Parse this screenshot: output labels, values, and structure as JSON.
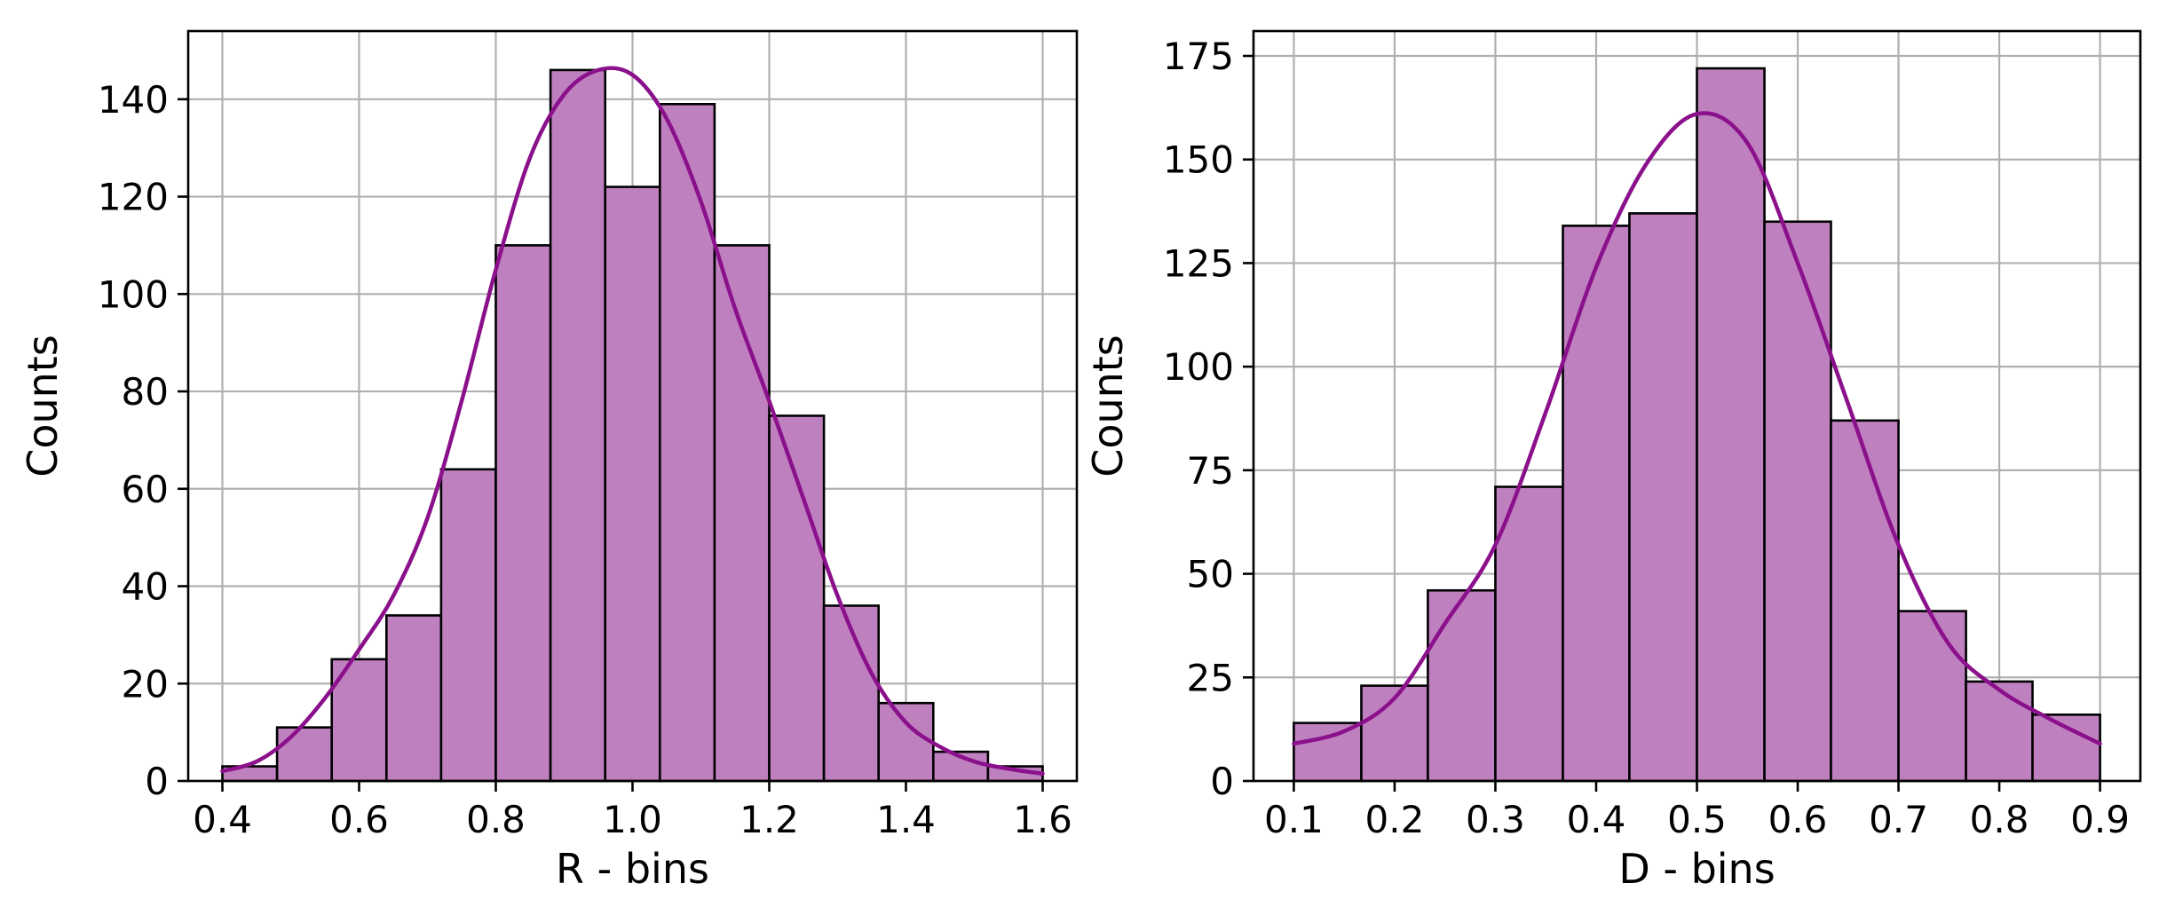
{
  "chart_data": [
    {
      "type": "bar",
      "subtype": "histogram-with-kde",
      "xlabel": "R - bins",
      "ylabel": "Counts",
      "xlim": [
        0.35,
        1.65
      ],
      "ylim": [
        0,
        154
      ],
      "xticks": [
        0.4,
        0.6,
        0.8,
        1.0,
        1.2,
        1.4,
        1.6
      ],
      "xtick_labels": [
        "0.4",
        "0.6",
        "0.8",
        "1.0",
        "1.2",
        "1.4",
        "1.6"
      ],
      "yticks": [
        0,
        20,
        40,
        60,
        80,
        100,
        120,
        140
      ],
      "ytick_labels": [
        "0",
        "20",
        "40",
        "60",
        "80",
        "100",
        "120",
        "140"
      ],
      "grid": true,
      "colors": {
        "bar_fill": "#bf80bf",
        "bar_edge": "#000000",
        "kde": "#8b108b"
      },
      "bins": [
        {
          "x0": 0.4,
          "x1": 0.48,
          "count": 3
        },
        {
          "x0": 0.48,
          "x1": 0.56,
          "count": 11
        },
        {
          "x0": 0.56,
          "x1": 0.64,
          "count": 25
        },
        {
          "x0": 0.64,
          "x1": 0.72,
          "count": 34
        },
        {
          "x0": 0.72,
          "x1": 0.8,
          "count": 64
        },
        {
          "x0": 0.8,
          "x1": 0.88,
          "count": 110
        },
        {
          "x0": 0.88,
          "x1": 0.96,
          "count": 146
        },
        {
          "x0": 0.96,
          "x1": 1.04,
          "count": 122
        },
        {
          "x0": 1.04,
          "x1": 1.12,
          "count": 139
        },
        {
          "x0": 1.12,
          "x1": 1.2,
          "count": 110
        },
        {
          "x0": 1.2,
          "x1": 1.28,
          "count": 75
        },
        {
          "x0": 1.28,
          "x1": 1.36,
          "count": 36
        },
        {
          "x0": 1.36,
          "x1": 1.44,
          "count": 16
        },
        {
          "x0": 1.44,
          "x1": 1.52,
          "count": 6
        },
        {
          "x0": 1.52,
          "x1": 1.6,
          "count": 3
        }
      ],
      "kde": {
        "x": [
          0.4,
          0.45,
          0.5,
          0.55,
          0.6,
          0.65,
          0.7,
          0.75,
          0.8,
          0.85,
          0.9,
          0.95,
          1.0,
          1.05,
          1.1,
          1.15,
          1.2,
          1.25,
          1.3,
          1.35,
          1.4,
          1.45,
          1.5,
          1.55,
          1.6
        ],
        "y": [
          2,
          4,
          9,
          17,
          27,
          38,
          54,
          78,
          105,
          128,
          141,
          146,
          145,
          136,
          119,
          97,
          78,
          58,
          38,
          22,
          12,
          7,
          4,
          2.5,
          1.5
        ]
      }
    },
    {
      "type": "bar",
      "subtype": "histogram-with-kde",
      "xlabel": "D - bins",
      "ylabel": "Counts",
      "xlim": [
        0.06,
        0.94
      ],
      "ylim": [
        0,
        181
      ],
      "xticks": [
        0.1,
        0.2,
        0.3,
        0.4,
        0.5,
        0.6,
        0.7,
        0.8,
        0.9
      ],
      "xtick_labels": [
        "0.1",
        "0.2",
        "0.3",
        "0.4",
        "0.5",
        "0.6",
        "0.7",
        "0.8",
        "0.9"
      ],
      "yticks": [
        0,
        25,
        50,
        75,
        100,
        125,
        150,
        175
      ],
      "ytick_labels": [
        "0",
        "25",
        "50",
        "75",
        "100",
        "125",
        "150",
        "175"
      ],
      "grid": true,
      "colors": {
        "bar_fill": "#bf80bf",
        "bar_edge": "#000000",
        "kde": "#8b108b"
      },
      "bins": [
        {
          "x0": 0.1,
          "x1": 0.167,
          "count": 14
        },
        {
          "x0": 0.167,
          "x1": 0.233,
          "count": 23
        },
        {
          "x0": 0.233,
          "x1": 0.3,
          "count": 46
        },
        {
          "x0": 0.3,
          "x1": 0.367,
          "count": 71
        },
        {
          "x0": 0.367,
          "x1": 0.433,
          "count": 134
        },
        {
          "x0": 0.433,
          "x1": 0.5,
          "count": 137
        },
        {
          "x0": 0.5,
          "x1": 0.567,
          "count": 172
        },
        {
          "x0": 0.567,
          "x1": 0.633,
          "count": 135
        },
        {
          "x0": 0.633,
          "x1": 0.7,
          "count": 87
        },
        {
          "x0": 0.7,
          "x1": 0.767,
          "count": 41
        },
        {
          "x0": 0.767,
          "x1": 0.833,
          "count": 24
        },
        {
          "x0": 0.833,
          "x1": 0.9,
          "count": 16
        }
      ],
      "kde": {
        "x": [
          0.1,
          0.15,
          0.2,
          0.25,
          0.3,
          0.35,
          0.4,
          0.45,
          0.5,
          0.55,
          0.6,
          0.65,
          0.7,
          0.75,
          0.8,
          0.85,
          0.9
        ],
        "y": [
          9,
          12,
          20,
          38,
          57,
          89,
          124,
          149,
          161,
          154,
          125,
          91,
          57,
          33,
          22,
          15,
          9
        ]
      }
    }
  ]
}
